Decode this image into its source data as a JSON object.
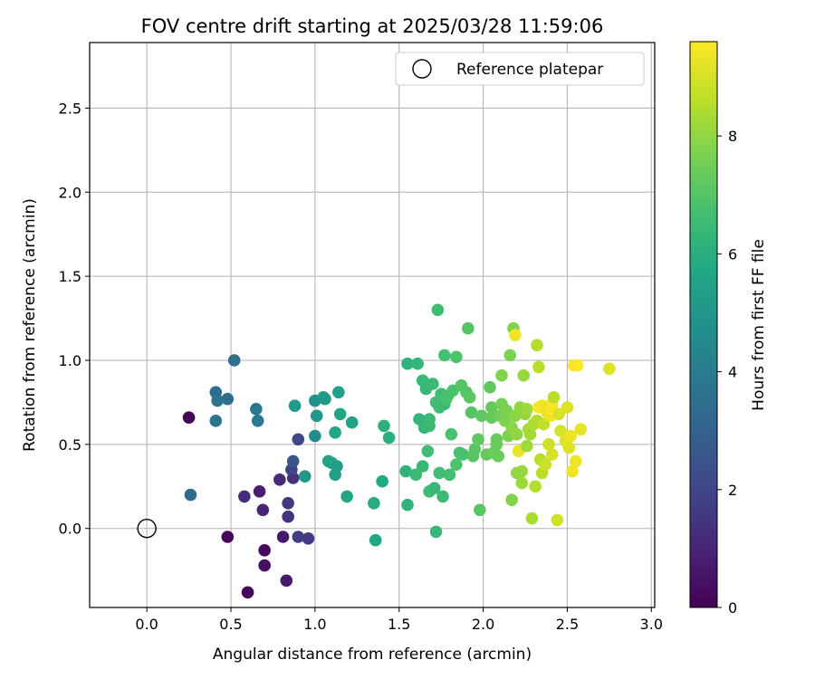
{
  "chart_data": {
    "type": "scatter",
    "title": "FOV centre drift starting at 2025/03/28 11:59:06",
    "xlabel": "Angular distance from reference (arcmin)",
    "ylabel": "Rotation from reference (arcmin)",
    "xlim": [
      -0.34,
      3.02
    ],
    "ylim": [
      -0.47,
      2.89
    ],
    "xticks": [
      0.0,
      0.5,
      1.0,
      1.5,
      2.0,
      2.5,
      3.0
    ],
    "xtick_labels": [
      "0.0",
      "0.5",
      "1.0",
      "1.5",
      "2.0",
      "2.5",
      "3.0"
    ],
    "yticks": [
      0.0,
      0.5,
      1.0,
      1.5,
      2.0,
      2.5
    ],
    "ytick_labels": [
      "0.0",
      "0.5",
      "1.0",
      "1.5",
      "2.0",
      "2.5"
    ],
    "grid": true,
    "legend": {
      "position": "top-right",
      "label": "Reference platepar"
    },
    "reference_point": {
      "x": 0.0,
      "y": 0.0
    },
    "colorbar": {
      "label": "Hours from first FF file",
      "range": [
        0,
        9.6
      ],
      "ticks": [
        0,
        2,
        4,
        6,
        8
      ],
      "tick_labels": [
        "0",
        "2",
        "4",
        "6",
        "8"
      ],
      "colormap": "viridis"
    },
    "points": [
      [
        0.25,
        0.66,
        0.1
      ],
      [
        0.48,
        -0.05,
        0.15
      ],
      [
        0.6,
        -0.38,
        0.2
      ],
      [
        0.7,
        -0.13,
        0.3
      ],
      [
        0.7,
        -0.22,
        0.4
      ],
      [
        0.81,
        -0.05,
        0.6
      ],
      [
        0.83,
        -0.31,
        0.7
      ],
      [
        0.67,
        0.22,
        0.8
      ],
      [
        0.69,
        0.11,
        1.0
      ],
      [
        0.58,
        0.19,
        1.2
      ],
      [
        0.79,
        0.29,
        1.2
      ],
      [
        0.84,
        0.07,
        1.4
      ],
      [
        0.87,
        0.3,
        1.4
      ],
      [
        0.84,
        0.15,
        1.5
      ],
      [
        0.96,
        -0.06,
        1.6
      ],
      [
        0.9,
        -0.05,
        1.8
      ],
      [
        0.86,
        0.35,
        1.9
      ],
      [
        0.9,
        0.53,
        2.0
      ],
      [
        0.87,
        0.4,
        2.6
      ],
      [
        0.26,
        0.2,
        3.3
      ],
      [
        0.52,
        1.0,
        3.5
      ],
      [
        0.41,
        0.81,
        3.4
      ],
      [
        0.42,
        0.76,
        3.6
      ],
      [
        0.48,
        0.77,
        3.5
      ],
      [
        0.41,
        0.64,
        3.7
      ],
      [
        0.65,
        0.71,
        3.8
      ],
      [
        0.66,
        0.64,
        3.9
      ],
      [
        0.88,
        0.73,
        5.2
      ],
      [
        0.94,
        0.31,
        5.0
      ],
      [
        1.0,
        0.55,
        4.7
      ],
      [
        1.0,
        0.76,
        4.8
      ],
      [
        1.01,
        0.67,
        5.1
      ],
      [
        1.05,
        0.78,
        5.3
      ],
      [
        1.06,
        0.77,
        5.2
      ],
      [
        1.08,
        0.4,
        5.6
      ],
      [
        1.1,
        0.39,
        5.6
      ],
      [
        1.12,
        0.32,
        5.4
      ],
      [
        1.12,
        0.57,
        5.7
      ],
      [
        1.13,
        0.37,
        5.3
      ],
      [
        1.14,
        0.81,
        5.4
      ],
      [
        1.15,
        0.68,
        5.7
      ],
      [
        1.19,
        0.19,
        5.6
      ],
      [
        1.22,
        0.63,
        5.5
      ],
      [
        1.35,
        0.15,
        5.9
      ],
      [
        1.36,
        -0.07,
        5.7
      ],
      [
        1.4,
        0.28,
        5.8
      ],
      [
        1.41,
        0.61,
        6.1
      ],
      [
        1.44,
        0.54,
        6.0
      ],
      [
        1.54,
        0.34,
        6.2
      ],
      [
        1.55,
        0.98,
        6.2
      ],
      [
        1.55,
        0.14,
        6.2
      ],
      [
        1.61,
        0.98,
        6.3
      ],
      [
        1.6,
        0.32,
        6.5
      ],
      [
        1.62,
        0.65,
        6.3
      ],
      [
        1.64,
        0.88,
        6.4
      ],
      [
        1.64,
        0.37,
        6.4
      ],
      [
        1.65,
        0.6,
        6.3
      ],
      [
        1.66,
        0.83,
        6.4
      ],
      [
        1.67,
        0.46,
        6.6
      ],
      [
        1.68,
        0.22,
        6.6
      ],
      [
        1.68,
        0.65,
        6.5
      ],
      [
        1.68,
        0.61,
        6.5
      ],
      [
        1.7,
        0.86,
        6.5
      ],
      [
        1.71,
        0.24,
        6.4
      ],
      [
        1.72,
        0.75,
        6.6
      ],
      [
        1.72,
        -0.02,
        6.4
      ],
      [
        1.73,
        1.3,
        6.6
      ],
      [
        1.74,
        0.72,
        6.6
      ],
      [
        1.74,
        0.33,
        6.6
      ],
      [
        1.75,
        0.8,
        6.6
      ],
      [
        1.76,
        0.19,
        6.5
      ],
      [
        1.77,
        0.74,
        6.5
      ],
      [
        1.77,
        1.03,
        6.7
      ],
      [
        1.78,
        0.77,
        6.8
      ],
      [
        1.79,
        0.79,
        6.8
      ],
      [
        1.8,
        0.32,
        6.7
      ],
      [
        1.81,
        0.56,
        6.8
      ],
      [
        1.82,
        0.82,
        6.8
      ],
      [
        1.84,
        1.02,
        6.9
      ],
      [
        1.84,
        0.38,
        6.9
      ],
      [
        1.86,
        0.45,
        6.7
      ],
      [
        1.87,
        0.85,
        7.0
      ],
      [
        1.88,
        0.44,
        6.8
      ],
      [
        1.9,
        0.81,
        7.0
      ],
      [
        1.91,
        1.19,
        7.0
      ],
      [
        1.92,
        0.78,
        7.1
      ],
      [
        1.93,
        0.69,
        7.0
      ],
      [
        1.94,
        0.43,
        7.1
      ],
      [
        1.95,
        0.47,
        7.1
      ],
      [
        1.97,
        0.53,
        7.2
      ],
      [
        1.98,
        0.11,
        7.1
      ],
      [
        1.99,
        0.67,
        7.2
      ],
      [
        2.02,
        0.44,
        7.3
      ],
      [
        2.04,
        0.84,
        7.2
      ],
      [
        2.05,
        0.72,
        7.3
      ],
      [
        2.05,
        0.66,
        7.3
      ],
      [
        2.06,
        0.45,
        7.4
      ],
      [
        2.08,
        0.5,
        7.4
      ],
      [
        2.08,
        0.53,
        7.4
      ],
      [
        2.09,
        0.43,
        7.4
      ],
      [
        2.1,
        0.67,
        7.5
      ],
      [
        2.11,
        0.91,
        7.8
      ],
      [
        2.11,
        0.74,
        7.6
      ],
      [
        2.13,
        0.64,
        7.7
      ],
      [
        2.14,
        0.7,
        7.7
      ],
      [
        2.15,
        0.55,
        7.7
      ],
      [
        2.16,
        1.03,
        7.7
      ],
      [
        2.17,
        0.17,
        7.8
      ],
      [
        2.17,
        0.6,
        7.9
      ],
      [
        2.18,
        1.19,
        7.8
      ],
      [
        2.19,
        0.67,
        7.9
      ],
      [
        2.19,
        1.15,
        9.4
      ],
      [
        2.2,
        0.33,
        8.0
      ],
      [
        2.2,
        0.56,
        8.0
      ],
      [
        2.21,
        0.46,
        9.3
      ],
      [
        2.22,
        0.72,
        8.0
      ],
      [
        2.23,
        0.34,
        8.1
      ],
      [
        2.23,
        0.27,
        8.2
      ],
      [
        2.24,
        0.91,
        8.1
      ],
      [
        2.25,
        0.68,
        8.1
      ],
      [
        2.26,
        0.49,
        8.2
      ],
      [
        2.26,
        0.71,
        8.2
      ],
      [
        2.27,
        0.59,
        8.3
      ],
      [
        2.28,
        0.56,
        8.3
      ],
      [
        2.29,
        0.06,
        8.4
      ],
      [
        2.3,
        0.62,
        8.4
      ],
      [
        2.31,
        0.25,
        8.5
      ],
      [
        2.32,
        0.64,
        8.5
      ],
      [
        2.32,
        1.09,
        8.5
      ],
      [
        2.33,
        0.96,
        8.6
      ],
      [
        2.33,
        0.72,
        9.5
      ],
      [
        2.34,
        0.41,
        8.6
      ],
      [
        2.35,
        0.33,
        8.6
      ],
      [
        2.35,
        0.73,
        9.4
      ],
      [
        2.36,
        0.62,
        8.7
      ],
      [
        2.37,
        0.38,
        8.8
      ],
      [
        2.38,
        0.69,
        9.3
      ],
      [
        2.39,
        0.73,
        9.4
      ],
      [
        2.39,
        0.5,
        8.9
      ],
      [
        2.4,
        0.67,
        9.4
      ],
      [
        2.4,
        0.71,
        9.5
      ],
      [
        2.41,
        0.73,
        9.5
      ],
      [
        2.41,
        0.44,
        9.0
      ],
      [
        2.42,
        0.78,
        8.6
      ],
      [
        2.44,
        0.05,
        8.9
      ],
      [
        2.45,
        0.68,
        9.0
      ],
      [
        2.46,
        0.58,
        9.0
      ],
      [
        2.49,
        0.52,
        9.1
      ],
      [
        2.5,
        0.72,
        9.1
      ],
      [
        2.51,
        0.48,
        9.1
      ],
      [
        2.52,
        0.55,
        9.3
      ],
      [
        2.53,
        0.34,
        9.4
      ],
      [
        2.54,
        0.97,
        9.5
      ],
      [
        2.55,
        0.4,
        9.4
      ],
      [
        2.56,
        0.97,
        9.6
      ],
      [
        2.58,
        0.59,
        9.2
      ],
      [
        2.75,
        0.95,
        9.1
      ]
    ]
  }
}
